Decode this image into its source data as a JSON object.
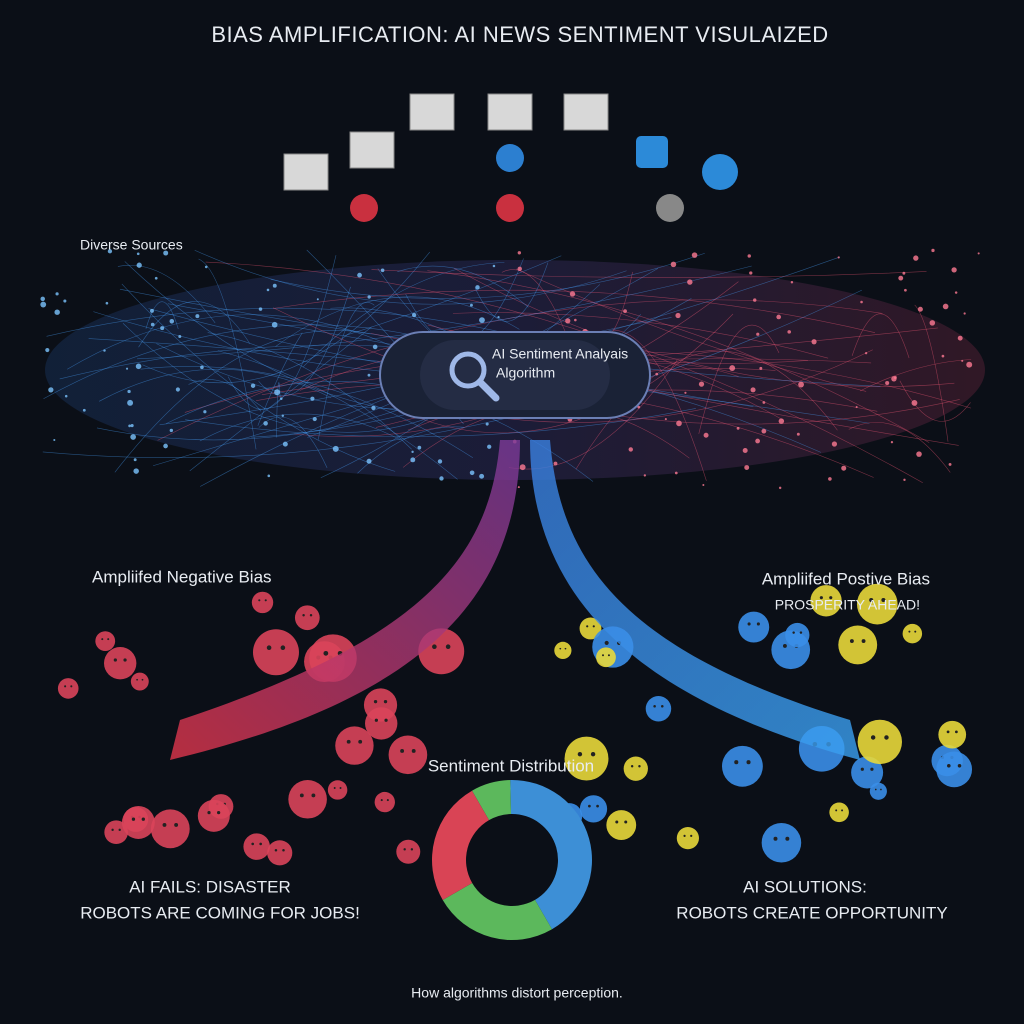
{
  "title": "BIAS AMPLIFICATION: AI NEWS SENTIMENT VISULAIZED",
  "sources_label": "Diverse Sources",
  "algorithm": {
    "line1": "AI Sentiment Analyais",
    "line2": "Algorithm"
  },
  "negative": {
    "label": "Ampliifed Negative Bias",
    "headline1": "AI FAILS: DISASTER",
    "headline2": "ROBOTS ARE COMING FOR JOBS!"
  },
  "positive": {
    "label": "Ampliifed Postive Bias",
    "slogan": "PROSPERITY AHEAD!",
    "headline1": "AI SOLUTIONS:",
    "headline2": "ROBOTS CREATE OPPORTUNITY"
  },
  "footer": "How algorithms distort perception.",
  "chart_data": {
    "type": "pie",
    "title": "Sentiment Distribution",
    "values": [
      8,
      42,
      25,
      25
    ],
    "colors": [
      "#5cb85c",
      "#3d8fd6",
      "#5cb85c",
      "#d94455"
    ],
    "start_angle": -30,
    "donut": true
  }
}
